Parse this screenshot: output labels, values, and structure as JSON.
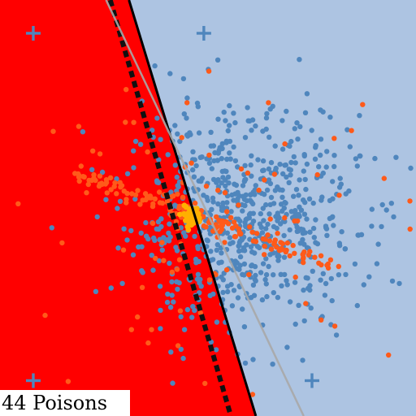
{
  "caption": "44 Poisons",
  "colors": {
    "region_left": "#ff0000",
    "region_right": "#adc4e2",
    "class_blue": "#4f86bd",
    "class_orange": "#ff5a1a",
    "poison": "#ffb000",
    "boundary_solid": "#000000",
    "boundary_dashed": "#111111",
    "boundary_gray": "#a8a8a8"
  },
  "chart_data": {
    "type": "scatter",
    "title": "",
    "xlabel": "",
    "ylabel": "",
    "xlim": [
      0,
      1
    ],
    "ylim": [
      0,
      1
    ],
    "grid": false,
    "legend": "none",
    "markers": [
      {
        "name": "plus-top-left",
        "x": 0.08,
        "y": 0.92,
        "color": "#4f86bd"
      },
      {
        "name": "plus-top-right",
        "x": 0.49,
        "y": 0.92,
        "color": "#4f86bd"
      },
      {
        "name": "plus-bottom-left",
        "x": 0.08,
        "y": 0.085,
        "color": "#4f86bd"
      },
      {
        "name": "plus-bottom-right",
        "x": 0.75,
        "y": 0.085,
        "color": "#4f86bd"
      }
    ],
    "boundaries": [
      {
        "name": "solid-boundary",
        "style": "solid",
        "points": [
          [
            0.31,
            1.0
          ],
          [
            0.615,
            0.0
          ]
        ]
      },
      {
        "name": "dashed-boundary",
        "style": "dashed",
        "points": [
          [
            0.265,
            1.0
          ],
          [
            0.555,
            0.0
          ]
        ]
      },
      {
        "name": "gray-boundary",
        "style": "gray",
        "points": [
          [
            0.255,
            1.0
          ],
          [
            0.73,
            0.0
          ]
        ]
      }
    ],
    "clusters": {
      "blue_cloud": {
        "center": [
          0.58,
          0.47
        ],
        "spread": [
          0.14,
          0.13
        ],
        "count": 720
      },
      "orange_streak": {
        "from": [
          0.16,
          0.59
        ],
        "to": [
          0.81,
          0.36
        ],
        "count": 150
      },
      "orange_scatter": {
        "center": [
          0.52,
          0.47
        ],
        "spread": [
          0.22,
          0.16
        ],
        "count": 90
      },
      "poison_cluster": {
        "center": [
          0.46,
          0.48
        ],
        "spread": [
          0.012,
          0.012
        ],
        "count": 44
      }
    }
  }
}
